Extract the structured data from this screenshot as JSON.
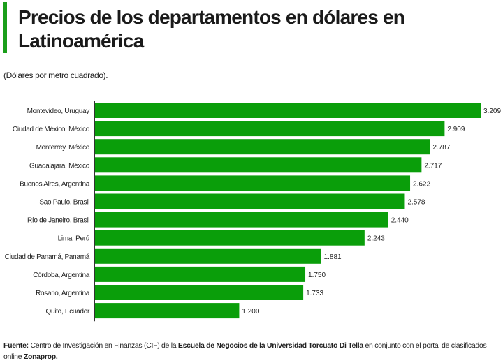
{
  "header": {
    "title": "Precios de los departamentos en dólares en Latinoamérica",
    "subtitle": "(Dólares por metro cuadrado)."
  },
  "colors": {
    "bar": "#0a9e0a",
    "accent": "#1a9e1a"
  },
  "chart_data": {
    "type": "bar",
    "orientation": "horizontal",
    "title": "Precios de los departamentos en dólares en Latinoamérica",
    "subtitle": "(Dólares por metro cuadrado).",
    "categories": [
      "Montevideo, Uruguay",
      "Ciudad de México, México",
      "Monterrey, México",
      "Guadalajara, México",
      "Buenos Aires, Argentina",
      "Sao Paulo, Brasil",
      "Río de Janeiro, Brasil",
      "Lima, Perú",
      "Ciudad de Panamá, Panamá",
      "Córdoba, Argentina",
      "Rosario, Argentina",
      "Quito, Ecuador"
    ],
    "values": [
      3209,
      2909,
      2787,
      2717,
      2622,
      2578,
      2440,
      2243,
      1881,
      1750,
      1733,
      1200
    ],
    "data_labels": [
      "3.209",
      "2.909",
      "2.787",
      "2.717",
      "2.622",
      "2.578",
      "2.440",
      "2.243",
      "1.881",
      "1.750",
      "1.733",
      "1.200"
    ],
    "xlim": [
      0,
      3209
    ],
    "grid": false
  },
  "footer": {
    "label": "Fuente:",
    "text1": " Centro de Investigación en Finanzas (CIF) de la ",
    "bold1": "Escuela de Negocios de la Universidad Torcuato Di Tella",
    "text2": " en conjunto con el portal de clasificados online ",
    "bold2": "Zonaprop."
  }
}
